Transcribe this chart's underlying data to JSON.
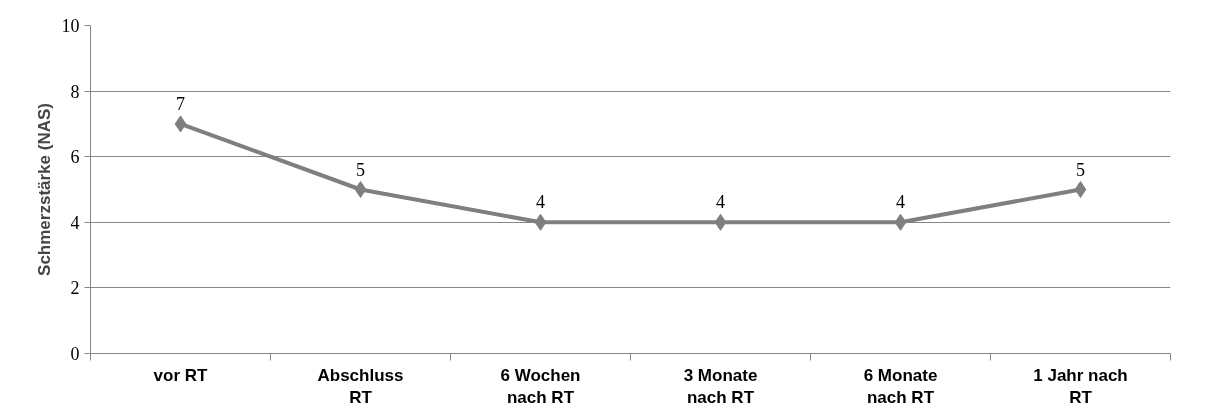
{
  "chart_data": {
    "type": "line",
    "ylabel": "Schmerzstärke (NAS)",
    "categories": [
      "vor RT",
      "Abschluss\nRT",
      "6 Wochen\nnach RT",
      "3 Monate\nnach RT",
      "6 Monate\nnach RT",
      "1 Jahr nach\nRT"
    ],
    "series": [
      {
        "color": "#7f7f7f",
        "values": [
          7,
          5,
          4,
          4,
          4,
          5
        ]
      }
    ],
    "ylim": [
      0,
      10
    ],
    "yticks": [
      0,
      2,
      4,
      6,
      8,
      10
    ],
    "grid": "y",
    "marker": "diamond",
    "line_style": "solid",
    "data_labels": true
  }
}
